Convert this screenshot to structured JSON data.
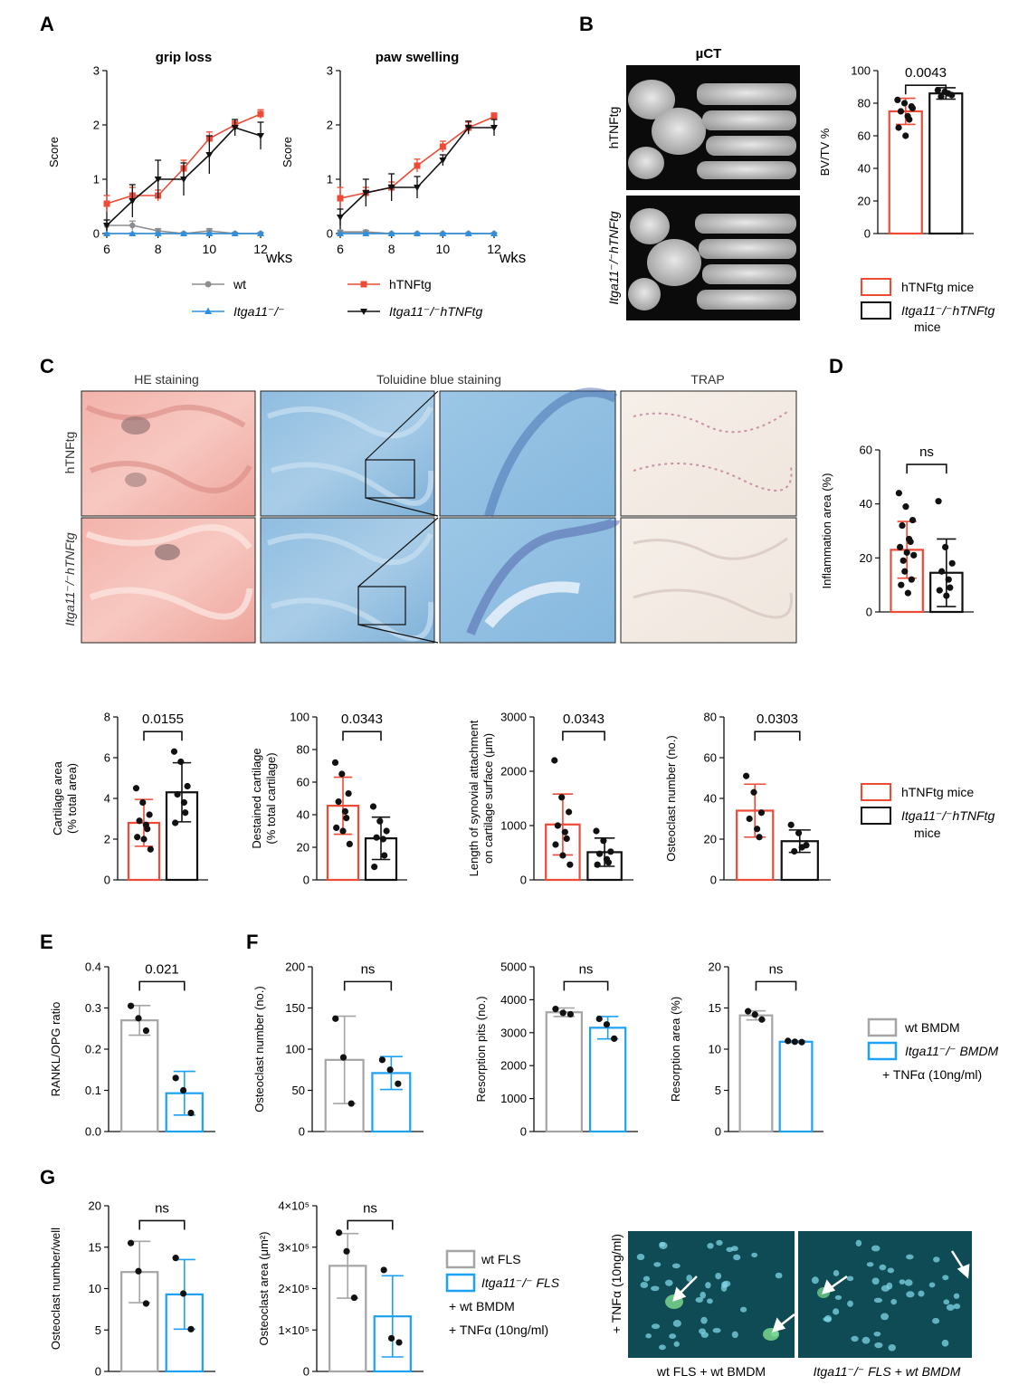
{
  "colors": {
    "hTNFtg": "#ee4a35",
    "itga_hTNFtg": "#111111",
    "wt": "#8d8d8d",
    "itga": "#2f8fdd",
    "wt_bmdm": "#a5a5a5",
    "itga_bmdm": "#1da1f2",
    "fluor_bg": "#0f4b55",
    "micro_bg": "#333333"
  },
  "panels": {
    "A": "A",
    "B": "B",
    "C": "C",
    "D": "D",
    "E": "E",
    "F": "F",
    "G": "G"
  },
  "images": {
    "uct_title": "µCT",
    "uct_row1": "hTNFtg",
    "uct_row2": "Itga11⁻/⁻hTNFtg",
    "col_he": "HE staining",
    "col_tol": "Toluidine blue staining",
    "col_trap": "TRAP",
    "row1": "hTNFtg",
    "row2": "Itga11⁻/⁻hTNFtg",
    "g_side": "+ TNFα (10ng/ml)",
    "g_cap1": "wt FLS + wt BMDM",
    "g_cap2": "Itga11⁻/⁻ FLS + wt BMDM"
  },
  "legends": {
    "A": [
      {
        "label": "wt",
        "color": "#8d8d8d",
        "marker": "circle"
      },
      {
        "label": "hTNFtg",
        "color": "#ee4a35",
        "marker": "square"
      },
      {
        "label": "Itga11⁻/⁻",
        "color": "#2f8fdd",
        "marker": "triangle"
      },
      {
        "label": "Itga11⁻/⁻hTNFtg",
        "color": "#111111",
        "marker": "triangle-down"
      }
    ],
    "B": [
      "hTNFtg mice",
      "Itga11⁻/⁻hTNFtg",
      "mice"
    ],
    "C": [
      "hTNFtg mice",
      "Itga11⁻/⁻hTNFtg",
      "mice"
    ],
    "F": [
      "wt BMDM",
      "Itga11⁻/⁻ BMDM",
      "+ TNFα (10ng/ml)"
    ],
    "G": [
      "wt FLS",
      "Itga11⁻/⁻ FLS",
      "+ wt BMDM",
      "+ TNFα (10ng/ml)"
    ]
  },
  "chart_data": [
    {
      "id": "A1",
      "type": "line",
      "title": "grip loss",
      "ylabel": "Score",
      "xlabel": "wks",
      "x": [
        6,
        7,
        8,
        9,
        10,
        11,
        12
      ],
      "xticks": [
        "6",
        "8",
        "10",
        "12"
      ],
      "ylim": [
        0,
        3
      ],
      "yticks": [
        0,
        1,
        2,
        3
      ],
      "series": [
        {
          "name": "wt",
          "values": [
            0.15,
            0.15,
            0.05,
            0.0,
            0.05,
            0.0,
            0.0
          ],
          "err": [
            0.1,
            0.08,
            0.04,
            0.02,
            0.04,
            0.02,
            0.02
          ]
        },
        {
          "name": "Itga11⁻/⁻",
          "values": [
            0.0,
            0.0,
            0.0,
            0.0,
            0.0,
            0.0,
            0.0
          ],
          "err": [
            0.01,
            0.01,
            0.01,
            0.01,
            0.01,
            0.01,
            0.01
          ]
        },
        {
          "name": "hTNFtg",
          "values": [
            0.55,
            0.7,
            0.7,
            1.2,
            1.75,
            2.0,
            2.2
          ],
          "err": [
            0.15,
            0.15,
            0.1,
            0.15,
            0.12,
            0.07,
            0.08
          ]
        },
        {
          "name": "Itga11⁻/⁻hTNFtg",
          "values": [
            0.15,
            0.6,
            1.0,
            1.0,
            1.45,
            1.95,
            1.8
          ],
          "err": [
            0.1,
            0.3,
            0.35,
            0.3,
            0.35,
            0.15,
            0.25
          ]
        }
      ]
    },
    {
      "id": "A2",
      "type": "line",
      "title": "paw swelling",
      "ylabel": "Score",
      "xlabel": "wks",
      "x": [
        6,
        7,
        8,
        9,
        10,
        11,
        12
      ],
      "xticks": [
        "6",
        "8",
        "10",
        "12"
      ],
      "ylim": [
        0,
        3
      ],
      "yticks": [
        0,
        1,
        2,
        3
      ],
      "series": [
        {
          "name": "wt",
          "values": [
            0.03,
            0.03,
            0.0,
            0.0,
            0.0,
            0.0,
            0.0
          ],
          "err": [
            0.03,
            0.03,
            0.01,
            0.01,
            0.01,
            0.01,
            0.01
          ]
        },
        {
          "name": "Itga11⁻/⁻",
          "values": [
            0.0,
            0.0,
            0.0,
            0.0,
            0.0,
            0.0,
            0.0
          ],
          "err": [
            0.01,
            0.01,
            0.01,
            0.01,
            0.01,
            0.01,
            0.01
          ]
        },
        {
          "name": "hTNFtg",
          "values": [
            0.65,
            0.75,
            0.85,
            1.25,
            1.6,
            1.95,
            2.15
          ],
          "err": [
            0.2,
            0.1,
            0.1,
            0.12,
            0.1,
            0.1,
            0.07
          ]
        },
        {
          "name": "Itga11⁻/⁻hTNFtg",
          "values": [
            0.3,
            0.75,
            0.85,
            0.85,
            1.35,
            1.95,
            1.95
          ],
          "err": [
            0.15,
            0.25,
            0.25,
            0.2,
            0.1,
            0.12,
            0.15
          ]
        }
      ]
    },
    {
      "id": "B",
      "type": "bar",
      "ylabel": "BV/TV %",
      "ylim": [
        0,
        100
      ],
      "yticks": [
        0,
        20,
        40,
        60,
        80,
        100
      ],
      "pvalue": "0.0043",
      "categories": [
        "hTNFtg mice",
        "Itga11⁻/⁻hTNFtg mice"
      ],
      "values": [
        75,
        86
      ],
      "err": [
        8,
        3.5
      ],
      "points": [
        [
          82,
          80,
          78,
          75,
          72,
          70,
          65,
          60,
          77
        ],
        [
          88,
          87,
          85,
          84,
          86
        ]
      ]
    },
    {
      "id": "D",
      "type": "bar",
      "ylabel": "Inflammation area (%)",
      "ylim": [
        0,
        60
      ],
      "yticks": [
        0,
        20,
        40,
        60
      ],
      "pvalue": "ns",
      "categories": [
        "hTNFtg mice",
        "Itga11⁻/⁻hTNFtg mice"
      ],
      "values": [
        23,
        14.5
      ],
      "err": [
        10.5,
        12.5
      ],
      "points": [
        [
          44,
          39,
          34,
          32,
          27,
          26,
          24,
          22,
          21,
          19,
          15,
          12,
          10,
          7
        ],
        [
          41,
          24,
          18,
          15,
          12,
          9,
          8,
          6
        ]
      ]
    },
    {
      "id": "C1",
      "type": "bar",
      "ylabel": "Cartilage area",
      "ylabel2": "(% total area)",
      "ylim": [
        0,
        8
      ],
      "yticks": [
        0,
        2,
        4,
        6,
        8
      ],
      "pvalue": "0.0155",
      "categories": [
        "hTNFtg mice",
        "Itga11⁻/⁻hTNFtg mice"
      ],
      "values": [
        2.8,
        4.3
      ],
      "err": [
        1.15,
        1.45
      ],
      "points": [
        [
          4.5,
          3.8,
          3.2,
          2.9,
          2.7,
          2.5,
          2.1,
          2.0,
          1.5
        ],
        [
          6.3,
          5.8,
          4.6,
          4.2,
          3.8,
          3.3,
          2.8
        ]
      ]
    },
    {
      "id": "C2",
      "type": "bar",
      "ylabel": "Destained cartilage",
      "ylabel2": "(% total cartilage)",
      "ylim": [
        0,
        100
      ],
      "yticks": [
        0,
        20,
        40,
        60,
        80,
        100
      ],
      "pvalue": "0.0343",
      "categories": [
        "hTNFtg mice",
        "Itga11⁻/⁻hTNFtg mice"
      ],
      "values": [
        45.5,
        25.5
      ],
      "err": [
        17.5,
        13
      ],
      "points": [
        [
          72,
          65,
          53,
          48,
          42,
          38,
          32,
          30,
          22
        ],
        [
          45,
          36,
          30,
          26,
          25,
          15,
          8
        ]
      ]
    },
    {
      "id": "C3",
      "type": "bar",
      "ylabel": "Length of synovial attachment",
      "ylabel2": "on cartilage surface (μm)",
      "ylim": [
        0,
        3000
      ],
      "yticks": [
        0,
        1000,
        2000,
        3000
      ],
      "pvalue": "0.0343",
      "categories": [
        "hTNFtg mice",
        "Itga11⁻/⁻hTNFtg mice"
      ],
      "values": [
        1020,
        510
      ],
      "err": [
        560,
        260
      ],
      "points": [
        [
          2200,
          1520,
          1250,
          1000,
          880,
          760,
          650,
          450,
          280
        ],
        [
          900,
          720,
          520,
          480,
          380,
          320,
          280
        ]
      ]
    },
    {
      "id": "C4",
      "type": "bar",
      "ylabel": "Osteoclast number (no.)",
      "ylim": [
        0,
        80
      ],
      "yticks": [
        0,
        20,
        40,
        60,
        80
      ],
      "pvalue": "0.0303",
      "categories": [
        "hTNFtg mice",
        "Itga11⁻/⁻hTNFtg mice"
      ],
      "values": [
        34,
        19
      ],
      "err": [
        13,
        5.5
      ],
      "points": [
        [
          51,
          43,
          33,
          30,
          25,
          21
        ],
        [
          27,
          23,
          17,
          14,
          16
        ]
      ]
    },
    {
      "id": "E",
      "type": "bar",
      "ylabel": "RANKL/OPG ratio",
      "ylim": [
        0,
        0.4
      ],
      "yticks": [
        "0.0",
        "0.1",
        "0.2",
        "0.3",
        "0.4"
      ],
      "pvalue": "0.021",
      "categories": [
        "wt BMDM",
        "Itga11⁻/⁻ BMDM"
      ],
      "values": [
        0.27,
        0.093
      ],
      "err": [
        0.036,
        0.053
      ],
      "points": [
        [
          0.305,
          0.275,
          0.245
        ],
        [
          0.13,
          0.1,
          0.045
        ]
      ]
    },
    {
      "id": "F1",
      "type": "bar",
      "ylabel": "Osteoclast number (no.)",
      "ylim": [
        0,
        200
      ],
      "yticks": [
        0,
        50,
        100,
        150,
        200
      ],
      "pvalue": "ns",
      "categories": [
        "wt BMDM",
        "Itga11⁻/⁻ BMDM"
      ],
      "values": [
        87,
        71
      ],
      "err": [
        53,
        20
      ],
      "points": [
        [
          137,
          90,
          34
        ],
        [
          87,
          75,
          58
        ]
      ]
    },
    {
      "id": "F2",
      "type": "bar",
      "ylabel": "Resorption pits (no.)",
      "ylim": [
        0,
        5000
      ],
      "yticks": [
        0,
        1000,
        2000,
        3000,
        4000,
        5000
      ],
      "pvalue": "ns",
      "categories": [
        "wt BMDM",
        "Itga11⁻/⁻ BMDM"
      ],
      "values": [
        3620,
        3150
      ],
      "err": [
        130,
        340
      ],
      "points": [
        [
          3720,
          3600,
          3560
        ],
        [
          3420,
          3250,
          2820
        ]
      ]
    },
    {
      "id": "F3",
      "type": "bar",
      "ylabel": "Resorption area (%)",
      "ylim": [
        0,
        20
      ],
      "yticks": [
        0,
        5,
        10,
        15,
        20
      ],
      "pvalue": "ns",
      "categories": [
        "wt BMDM",
        "Itga11⁻/⁻ BMDM"
      ],
      "values": [
        14.1,
        10.9
      ],
      "err": [
        0.55,
        0.1
      ],
      "points": [
        [
          14.6,
          14.2,
          13.6
        ],
        [
          11.0,
          10.9,
          10.85
        ]
      ]
    },
    {
      "id": "G1",
      "type": "bar",
      "ylabel": "Osteoclast number/well",
      "ylim": [
        0,
        20
      ],
      "yticks": [
        0,
        5,
        10,
        15,
        20
      ],
      "pvalue": "ns",
      "categories": [
        "wt FLS",
        "Itga11⁻/⁻ FLS"
      ],
      "values": [
        12,
        9.3
      ],
      "err": [
        3.7,
        4.2
      ],
      "points": [
        [
          15.5,
          12.1,
          8.2
        ],
        [
          13.7,
          9.4,
          5.1
        ]
      ]
    },
    {
      "id": "G2",
      "type": "bar",
      "ylabel": "Osteoclast area (μm²)",
      "ylim": [
        0,
        400000
      ],
      "yticks": [
        "0",
        "1×10⁵",
        "2×10⁵",
        "3×10⁵",
        "4×10⁵"
      ],
      "pvalue": "ns",
      "categories": [
        "wt FLS",
        "Itga11⁻/⁻ FLS"
      ],
      "values": [
        255000,
        133000
      ],
      "err": [
        78000,
        98000
      ],
      "points": [
        [
          335000,
          290000,
          178000
        ],
        [
          245000,
          80000,
          70000
        ]
      ]
    }
  ]
}
